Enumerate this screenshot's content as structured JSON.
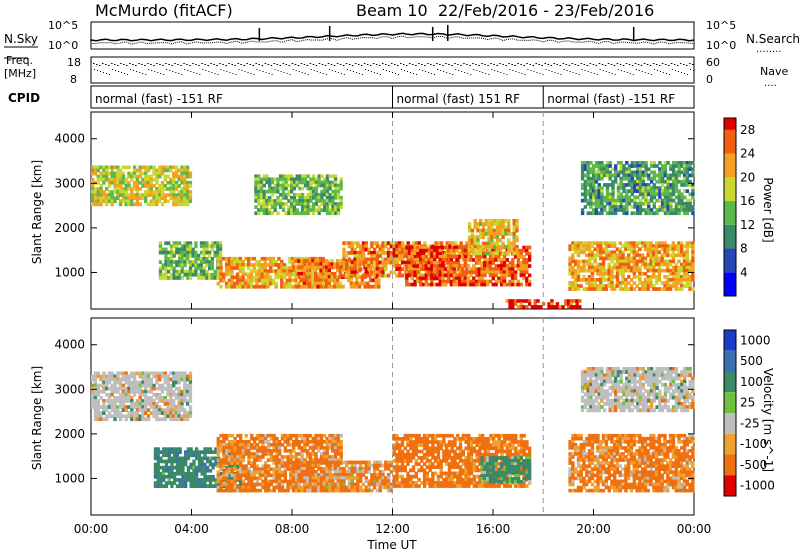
{
  "header": {
    "station": "McMurdo (fitACF)",
    "beam": "Beam 10",
    "date_range": "22/Feb/2016 - 23/Feb/2016"
  },
  "summary": {
    "nsky_label": "N.Sky",
    "nsearch_label": "N.Search",
    "nsearch_dots": "........",
    "noise_ticks": [
      "10^5",
      "10^0"
    ],
    "freq_label_1": "Freq.",
    "freq_label_2": "[MHz]",
    "freq_ticks": [
      "18",
      "8"
    ],
    "nave_label": "Nave",
    "nave_dots": "....",
    "nave_ticks": [
      "60",
      "0"
    ],
    "cpid_label": "CPID",
    "cpid_segments": [
      {
        "label": "normal (fast) -151 RF",
        "start_hour": 0
      },
      {
        "label": "normal (fast) 151 RF",
        "start_hour": 12
      },
      {
        "label": "normal (fast) -151 RF",
        "start_hour": 18
      }
    ]
  },
  "chart_data": [
    {
      "type": "heatmap",
      "name": "power-panel",
      "xlabel": "",
      "ylabel": "Slant Range [km]",
      "xlim": [
        0,
        24
      ],
      "ylim": [
        180,
        4600
      ],
      "yticks": [
        1000,
        2000,
        3000,
        4000
      ],
      "colorbar_label": "Power [dB]",
      "colorbar_range": [
        0,
        30
      ],
      "colorbar_ticks": [
        "4",
        "8",
        "12",
        "16",
        "20",
        "24",
        "28"
      ],
      "colorbar_tick_values": [
        4,
        8,
        12,
        16,
        20,
        24,
        28
      ],
      "colorbar_colors": [
        "#0000ff",
        "#2747b8",
        "#3a8a6a",
        "#5cb84a",
        "#c8d830",
        "#f4a020",
        "#f06010",
        "#e00000"
      ],
      "regions": [
        {
          "t0": 0.0,
          "t1": 4.0,
          "r0": 2500,
          "r1": 3400,
          "value": 18
        },
        {
          "t0": 2.7,
          "t1": 5.2,
          "r0": 850,
          "r1": 1700,
          "value": 14
        },
        {
          "t0": 5.0,
          "t1": 9.5,
          "r0": 650,
          "r1": 1350,
          "value": 22
        },
        {
          "t0": 6.5,
          "t1": 10.0,
          "r0": 2300,
          "r1": 3200,
          "value": 14
        },
        {
          "t0": 8.0,
          "t1": 11.5,
          "r0": 650,
          "r1": 1300,
          "value": 24
        },
        {
          "t0": 10.0,
          "t1": 15.0,
          "r0": 900,
          "r1": 1700,
          "value": 24
        },
        {
          "t0": 12.5,
          "t1": 17.5,
          "r0": 700,
          "r1": 1600,
          "value": 26
        },
        {
          "t0": 15.0,
          "t1": 17.0,
          "r0": 1400,
          "r1": 2200,
          "value": 20
        },
        {
          "t0": 16.5,
          "t1": 19.5,
          "r0": 200,
          "r1": 400,
          "value": 28
        },
        {
          "t0": 19.0,
          "t1": 24.0,
          "r0": 600,
          "r1": 1700,
          "value": 22
        },
        {
          "t0": 19.5,
          "t1": 24.0,
          "r0": 2300,
          "r1": 3500,
          "value": 12
        }
      ]
    },
    {
      "type": "heatmap",
      "name": "velocity-panel",
      "xlabel": "Time UT",
      "ylabel": "Slant Range [km]",
      "xlim": [
        0,
        24
      ],
      "ylim": [
        180,
        4600
      ],
      "yticks": [
        1000,
        2000,
        3000,
        4000
      ],
      "xtick_labels": [
        "00:00",
        "04:00",
        "08:00",
        "12:00",
        "16:00",
        "20:00",
        "00:00"
      ],
      "xtick_hours": [
        0,
        4,
        8,
        12,
        16,
        20,
        24
      ],
      "colorbar_label": "Velocity [m s^-1]",
      "colorbar_ticks": [
        "1000",
        "500",
        "100",
        "25",
        "-25",
        "-100",
        "-500",
        "-1000"
      ],
      "colorbar_colors": [
        "#1a3cc8",
        "#3a70b0",
        "#3a8a6a",
        "#70c040",
        "#bebebe",
        "#f0a030",
        "#f07010",
        "#e00000"
      ],
      "regions": [
        {
          "t0": 0.0,
          "t1": 4.0,
          "r0": 2300,
          "r1": 3400,
          "value": 0
        },
        {
          "t0": 2.5,
          "t1": 6.0,
          "r0": 800,
          "r1": 1700,
          "value": 200
        },
        {
          "t0": 5.0,
          "t1": 10.0,
          "r0": 700,
          "r1": 2000,
          "value": -150
        },
        {
          "t0": 8.0,
          "t1": 12.0,
          "r0": 700,
          "r1": 1400,
          "value": -120
        },
        {
          "t0": 12.0,
          "t1": 17.5,
          "r0": 800,
          "r1": 2000,
          "value": -200
        },
        {
          "t0": 15.5,
          "t1": 17.5,
          "r0": 900,
          "r1": 1500,
          "value": 150
        },
        {
          "t0": 19.0,
          "t1": 24.0,
          "r0": 700,
          "r1": 2000,
          "value": -150
        },
        {
          "t0": 19.5,
          "t1": 24.0,
          "r0": 2500,
          "r1": 3500,
          "value": 0
        }
      ]
    }
  ]
}
